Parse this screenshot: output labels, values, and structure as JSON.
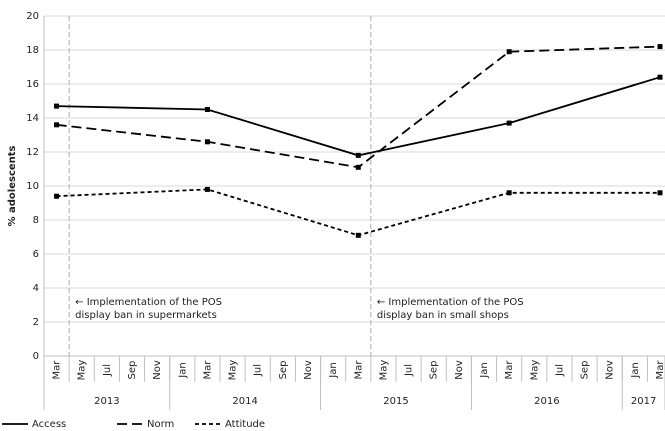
{
  "chart_data": {
    "type": "line",
    "y_label": "% adolescents",
    "x": [
      "2013-03",
      "2014-03",
      "2015-03",
      "2016-03",
      "2017-03"
    ],
    "series": [
      {
        "name": "Access",
        "color": "#000000",
        "dash": "solid",
        "values": [
          14.7,
          14.5,
          11.8,
          13.7,
          16.4
        ]
      },
      {
        "name": "Norm",
        "color": "#000000",
        "dash": "long-dash",
        "values": [
          13.6,
          12.6,
          11.1,
          17.9,
          18.2
        ]
      },
      {
        "name": "Attitude",
        "color": "#000000",
        "dash": "short-dash",
        "values": [
          9.4,
          9.8,
          7.1,
          9.6,
          9.6
        ]
      }
    ],
    "xlim": [
      "2013-02",
      "2017-03"
    ],
    "xticks": [
      {
        "value": "2013-03",
        "label": "Mar"
      },
      {
        "value": "2013-05",
        "label": "May"
      },
      {
        "value": "2013-07",
        "label": "Jul"
      },
      {
        "value": "2013-09",
        "label": "Sep"
      },
      {
        "value": "2013-11",
        "label": "Nov"
      },
      {
        "value": "2014-01",
        "label": "Jan"
      },
      {
        "value": "2014-03",
        "label": "Mar"
      },
      {
        "value": "2014-05",
        "label": "May"
      },
      {
        "value": "2014-07",
        "label": "Jul"
      },
      {
        "value": "2014-09",
        "label": "Sep"
      },
      {
        "value": "2014-11",
        "label": "Nov"
      },
      {
        "value": "2015-01",
        "label": "Jan"
      },
      {
        "value": "2015-03",
        "label": "Mar"
      },
      {
        "value": "2015-05",
        "label": "May"
      },
      {
        "value": "2015-07",
        "label": "Jul"
      },
      {
        "value": "2015-09",
        "label": "Sep"
      },
      {
        "value": "2015-11",
        "label": "Nov"
      },
      {
        "value": "2016-01",
        "label": "Jan"
      },
      {
        "value": "2016-03",
        "label": "Mar"
      },
      {
        "value": "2016-05",
        "label": "May"
      },
      {
        "value": "2016-07",
        "label": "Jul"
      },
      {
        "value": "2016-09",
        "label": "Sep"
      },
      {
        "value": "2016-11",
        "label": "Nov"
      },
      {
        "value": "2017-01",
        "label": "Jan"
      },
      {
        "value": "2017-03",
        "label": "Mar"
      }
    ],
    "x_groups": [
      "2013",
      "2014",
      "2015",
      "2016",
      "2017"
    ],
    "ylim": [
      0,
      20
    ],
    "yticks": [
      0,
      2,
      4,
      6,
      8,
      10,
      12,
      14,
      16,
      18,
      20
    ],
    "grid": true,
    "legend": "bottom",
    "annotations": [
      {
        "x": "2013-04",
        "lines": [
          "← Implementation of the POS",
          "display ban in supermarkets"
        ]
      },
      {
        "x": "2015-04",
        "lines": [
          "← Implementation of the POS",
          "display ban in small shops"
        ]
      }
    ]
  }
}
